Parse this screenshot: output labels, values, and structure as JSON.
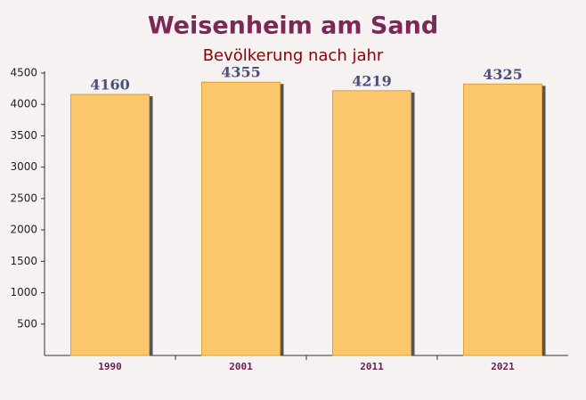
{
  "chart_data": {
    "type": "bar",
    "title": "Weisenheim am Sand",
    "subtitle": "Bevölkerung nach jahr",
    "categories": [
      "1990",
      "2001",
      "2011",
      "2021"
    ],
    "values": [
      4160,
      4355,
      4219,
      4325
    ],
    "color": "#fcc66c",
    "ylim": [
      0,
      4500
    ],
    "yticks": [
      500,
      1000,
      1500,
      2000,
      2500,
      3000,
      3500,
      4000,
      4500
    ],
    "grid": false
  }
}
